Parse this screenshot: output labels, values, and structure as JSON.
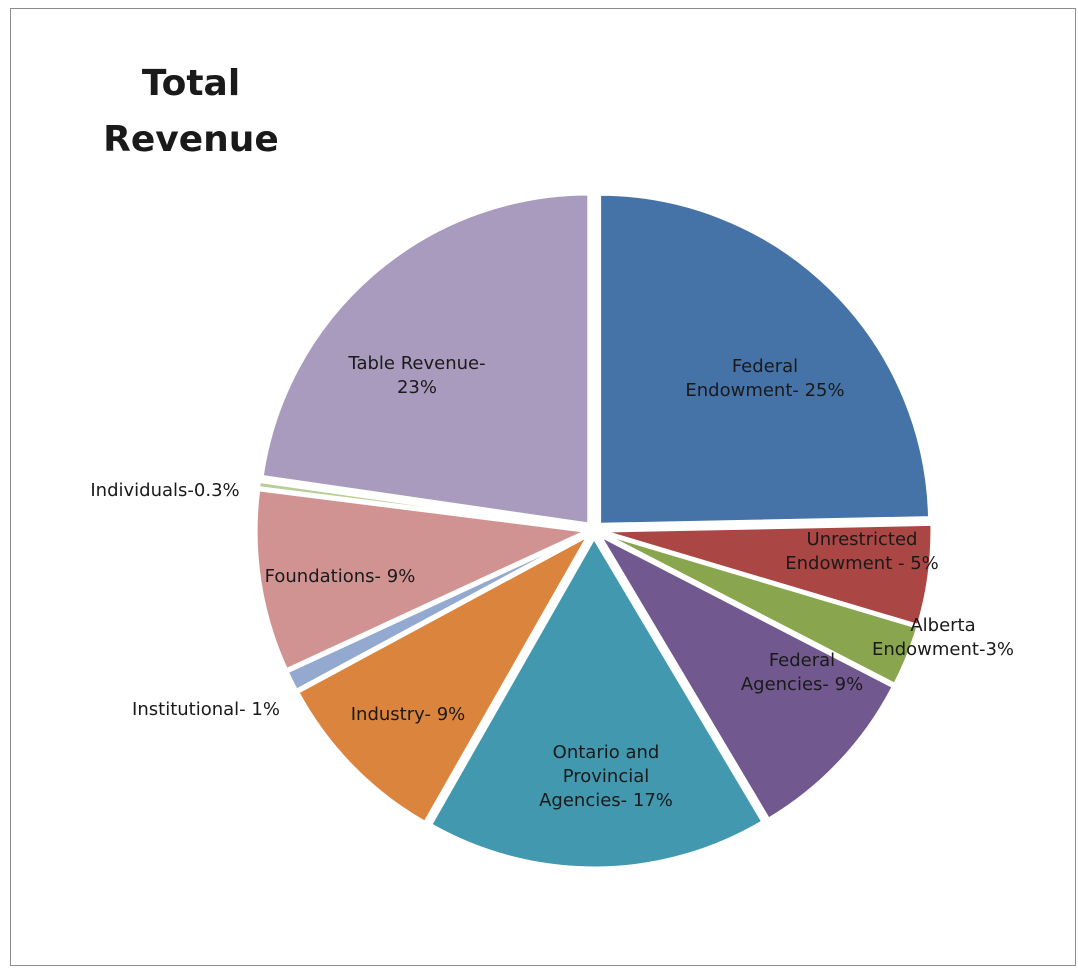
{
  "chart_data": {
    "type": "pie",
    "title": "Total Revenue",
    "title_lines": [
      "Total",
      "Revenue"
    ],
    "slices": [
      {
        "label_lines": [
          "Federal",
          "Endowment- 25%"
        ],
        "value": 25,
        "color": "#4572A7"
      },
      {
        "label_lines": [
          "Unrestricted",
          "Endowment - 5%"
        ],
        "value": 5,
        "color": "#AA4643"
      },
      {
        "label_lines": [
          "Alberta",
          "Endowment-3%"
        ],
        "value": 3,
        "color": "#89A54E"
      },
      {
        "label_lines": [
          "Federal",
          "Agencies- 9%"
        ],
        "value": 9,
        "color": "#71588F"
      },
      {
        "label_lines": [
          "Ontario and",
          "Provincial",
          "Agencies- 17%"
        ],
        "value": 17,
        "color": "#4198AF"
      },
      {
        "label_lines": [
          "Industry- 9%"
        ],
        "value": 9,
        "color": "#DB843D"
      },
      {
        "label_lines": [
          "Institutional- 1%"
        ],
        "value": 1,
        "color": "#93A9CF"
      },
      {
        "label_lines": [
          "Foundations- 9%"
        ],
        "value": 9,
        "color": "#D19392"
      },
      {
        "label_lines": [
          "Individuals-0.3%"
        ],
        "value": 0.3,
        "color": "#B9CD96"
      },
      {
        "label_lines": [
          "Table Revenue-",
          "23%"
        ],
        "value": 23,
        "color": "#A99BBD"
      }
    ],
    "legend": "none"
  }
}
